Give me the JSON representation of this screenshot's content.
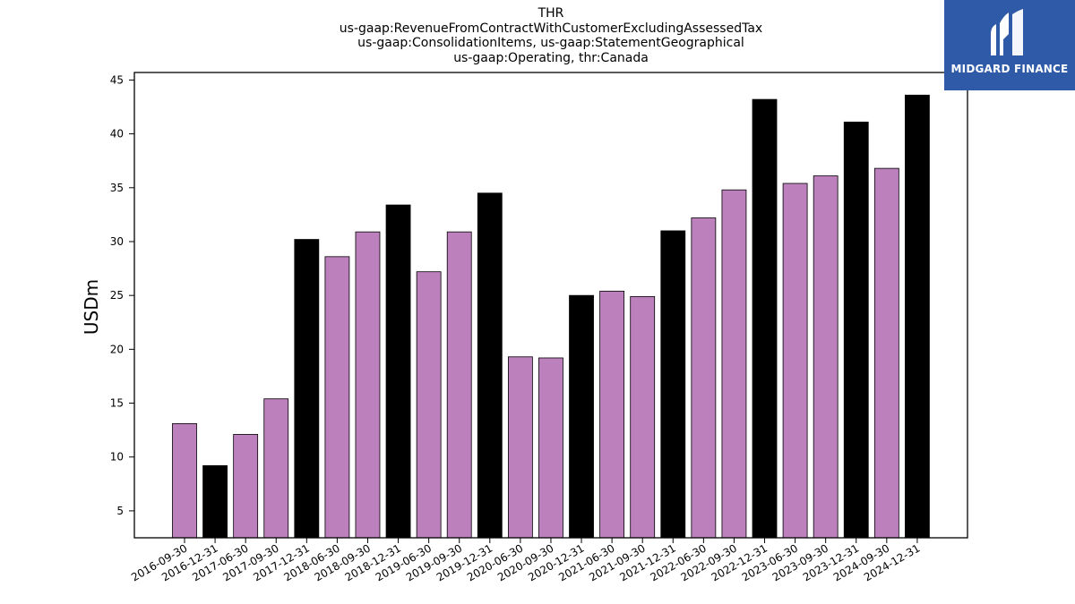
{
  "brand": {
    "name": "MIDGARD FINANCE",
    "color": "#2e5aa8",
    "icon": "midgard-logo-icon"
  },
  "chart_data": {
    "type": "bar",
    "title": [
      "THR",
      "us-gaap:RevenueFromContractWithCustomerExcludingAssessedTax",
      "us-gaap:ConsolidationItems, us-gaap:StatementGeographical",
      "us-gaap:Operating, thr:Canada"
    ],
    "xlabel": "",
    "ylabel": "USDm",
    "ylim": [
      2.5,
      45.7
    ],
    "yticks": [
      5,
      10,
      15,
      20,
      25,
      30,
      35,
      40,
      45
    ],
    "colors": {
      "quarter": "#bc80bd",
      "year_end": "#000000",
      "edge": "#000000"
    },
    "categories": [
      "2016-09-30",
      "2016-12-31",
      "2017-06-30",
      "2017-09-30",
      "2017-12-31",
      "2018-06-30",
      "2018-09-30",
      "2018-12-31",
      "2019-06-30",
      "2019-09-30",
      "2019-12-31",
      "2020-06-30",
      "2020-09-30",
      "2020-12-31",
      "2021-06-30",
      "2021-09-30",
      "2021-12-31",
      "2022-06-30",
      "2022-09-30",
      "2022-12-31",
      "2023-06-30",
      "2023-09-30",
      "2023-12-31",
      "2024-09-30",
      "2024-12-31"
    ],
    "values": [
      13.1,
      9.2,
      12.1,
      15.4,
      30.2,
      28.6,
      30.9,
      33.4,
      27.2,
      30.9,
      34.5,
      19.3,
      19.2,
      25.0,
      25.4,
      24.9,
      31.0,
      32.2,
      34.8,
      43.2,
      35.4,
      36.1,
      41.1,
      36.8,
      43.6
    ]
  }
}
